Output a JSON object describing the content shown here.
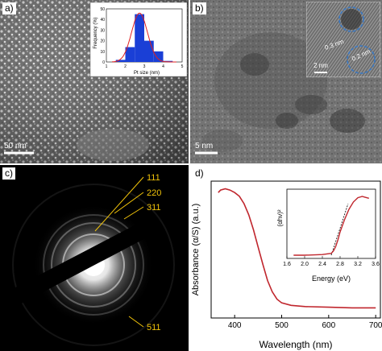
{
  "panels": {
    "a": {
      "label": "a)",
      "scale_bar": "50 nm",
      "inset": {
        "ylabel": "Frequency (%)",
        "xlabel": "Pt size (nm)",
        "yticks": [
          "0",
          "10",
          "20",
          "30",
          "40",
          "50"
        ],
        "xticks": [
          "1",
          "2",
          "3",
          "4",
          "5"
        ]
      }
    },
    "b": {
      "label": "b)",
      "scale_bar": "5 nm",
      "inset": {
        "scale_bar": "2 nm",
        "d1": "0.3 nm",
        "d2": "0.2 nm"
      }
    },
    "c": {
      "label": "c)",
      "rings": [
        "111",
        "220",
        "311",
        "511"
      ]
    },
    "d": {
      "label": "d)",
      "ylabel": "Absorbance (α/S) (a.u.)",
      "xlabel": "Wavelength (nm)",
      "xticks": [
        "400",
        "500",
        "600",
        "700"
      ],
      "inset": {
        "ylabel": "(αhν)²",
        "xlabel": "Energy (eV)",
        "xticks": [
          "1.6",
          "2.0",
          "2.4",
          "2.8",
          "3.2",
          "3.6"
        ]
      }
    }
  },
  "colors": {
    "curve": "#c0262d",
    "bars": "#1a3fd6",
    "gauss": "#e02020",
    "ring_labels": "#f2c40a",
    "dashed_circle": "#3a78c2"
  },
  "chart_data": [
    {
      "type": "bar",
      "panel": "a-inset",
      "title": "",
      "xlabel": "Pt size (nm)",
      "ylabel": "Frequency (%)",
      "x": [
        1.75,
        2.25,
        2.75,
        3.25,
        3.75,
        4.25
      ],
      "values": [
        2,
        14,
        45,
        20,
        10,
        1
      ],
      "fit": "gaussian",
      "xlim": [
        1,
        5
      ],
      "ylim": [
        0,
        50
      ]
    },
    {
      "type": "line",
      "panel": "d",
      "title": "",
      "xlabel": "Wavelength (nm)",
      "ylabel": "Absorbance (α/S) (a.u.)",
      "xlim": [
        350,
        710
      ],
      "x": [
        365,
        370,
        380,
        390,
        400,
        410,
        420,
        430,
        440,
        450,
        460,
        470,
        480,
        490,
        500,
        520,
        550,
        600,
        650,
        700
      ],
      "y": [
        0.96,
        0.98,
        0.99,
        0.98,
        0.96,
        0.93,
        0.87,
        0.78,
        0.66,
        0.52,
        0.38,
        0.25,
        0.16,
        0.1,
        0.07,
        0.05,
        0.04,
        0.035,
        0.03,
        0.03
      ]
    },
    {
      "type": "line",
      "panel": "d-inset",
      "title": "",
      "xlabel": "Energy (eV)",
      "ylabel": "(αhν)²",
      "xlim": [
        1.6,
        3.6
      ],
      "x": [
        1.75,
        2.0,
        2.4,
        2.6,
        2.65,
        2.7,
        2.75,
        2.8,
        2.9,
        3.0,
        3.1,
        3.2,
        3.3,
        3.35,
        3.45
      ],
      "y": [
        0.0,
        0.0,
        0.01,
        0.03,
        0.07,
        0.14,
        0.25,
        0.38,
        0.58,
        0.75,
        0.87,
        0.94,
        0.96,
        0.95,
        0.93
      ]
    }
  ]
}
